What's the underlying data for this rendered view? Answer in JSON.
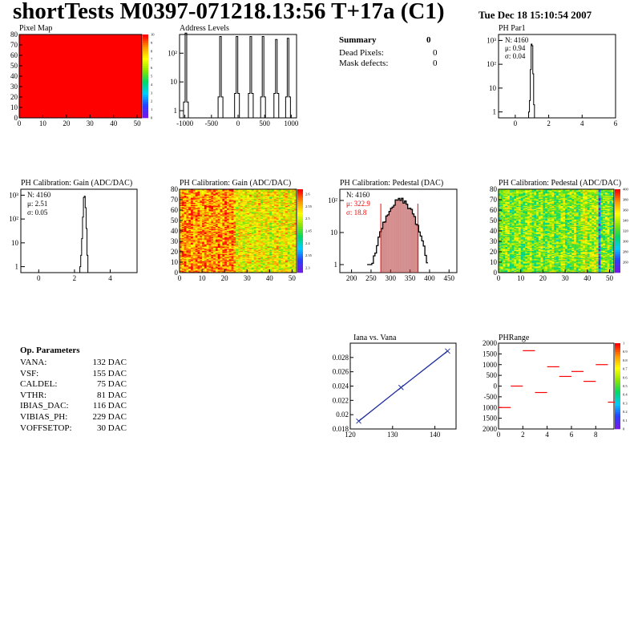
{
  "header": {
    "title": "shortTests M0397-071218.13:56 T+17a (C1)",
    "date": "Tue Dec 18 15:10:54 2007"
  },
  "summary": {
    "title": "Summary",
    "total": "0",
    "rows": [
      {
        "label": "Dead Pixels:",
        "value": "0"
      },
      {
        "label": "Mask defects:",
        "value": "0"
      }
    ]
  },
  "op_params": {
    "title": "Op. Parameters",
    "rows": [
      {
        "label": "VANA:",
        "value": "132 DAC"
      },
      {
        "label": "VSF:",
        "value": "155 DAC"
      },
      {
        "label": "CALDEL:",
        "value": "75 DAC"
      },
      {
        "label": "VTHR:",
        "value": "81 DAC"
      },
      {
        "label": "IBIAS_DAC:",
        "value": "116 DAC"
      },
      {
        "label": "VIBIAS_PH:",
        "value": "229 DAC"
      },
      {
        "label": "VOFFSETOP:",
        "value": "30 DAC"
      }
    ]
  },
  "colors": {
    "red": "#ff0000",
    "blue": "#1f2ea0",
    "hist_fill": "#b03030"
  },
  "chart_data": [
    {
      "id": "pixel_map",
      "type": "heatmap",
      "title": "Pixel Map",
      "xlim": [
        0,
        52
      ],
      "ylim": [
        0,
        80
      ],
      "xticks": [
        "0",
        "10",
        "20",
        "30",
        "40",
        "50"
      ],
      "yticks": [
        "0",
        "10",
        "20",
        "30",
        "40",
        "50",
        "60",
        "70",
        "80"
      ],
      "zlim": [
        0,
        10
      ],
      "zticks": [
        "0",
        "1",
        "2",
        "3",
        "4",
        "5",
        "6",
        "7",
        "8",
        "9",
        "10"
      ],
      "uniform_value": 10
    },
    {
      "id": "address_levels",
      "type": "bar",
      "title": "Address Levels",
      "xlim": [
        -1100,
        1100
      ],
      "ylog": true,
      "xticks": [
        "-1000",
        "-500",
        "0",
        "500",
        "1000"
      ],
      "yticks": [
        "1",
        "10",
        "10²"
      ],
      "peaks": [
        {
          "x": -980,
          "value": 500,
          "side": 2
        },
        {
          "x": -330,
          "value": 380,
          "side": 3
        },
        {
          "x": -20,
          "value": 380,
          "side": 4
        },
        {
          "x": 240,
          "value": 380,
          "side": 4
        },
        {
          "x": 470,
          "value": 380,
          "side": 3
        },
        {
          "x": 720,
          "value": 300,
          "side": 4
        },
        {
          "x": 940,
          "value": 330,
          "side": 3
        }
      ]
    },
    {
      "id": "ph_par1",
      "type": "bar",
      "title": "PH Par1",
      "xlim": [
        -1,
        6
      ],
      "ylog": true,
      "xticks": [
        "0",
        "2",
        "4",
        "6"
      ],
      "yticks": [
        "1",
        "10",
        "10²",
        "10³"
      ],
      "stats": {
        "n": "N: 4160",
        "mu": "μ: 0.94",
        "sigma": "σ: 0.04"
      },
      "x": [
        0.8,
        0.85,
        0.9,
        0.95,
        1.0,
        1.05,
        1.1
      ],
      "values": [
        1,
        3,
        60,
        700,
        600,
        40,
        2
      ]
    },
    {
      "id": "gain_hist",
      "type": "bar",
      "title": "PH Calibration: Gain (ADC/DAC)",
      "xlim": [
        -1,
        5.5
      ],
      "ylog": true,
      "xticks": [
        "0",
        "2",
        "4"
      ],
      "yticks": [
        "1",
        "10",
        "10²",
        "10³"
      ],
      "stats": {
        "n": "N: 4160",
        "mu": "μ: 2.51",
        "sigma": "σ: 0.05"
      },
      "x": [
        2.3,
        2.35,
        2.4,
        2.45,
        2.5,
        2.55,
        2.6,
        2.65,
        2.7
      ],
      "values": [
        1,
        3,
        15,
        120,
        800,
        900,
        300,
        40,
        3
      ]
    },
    {
      "id": "gain_map",
      "type": "heatmap",
      "title": "PH Calibration: Gain (ADC/DAC)",
      "xlim": [
        0,
        52
      ],
      "ylim": [
        0,
        80
      ],
      "xticks": [
        "0",
        "10",
        "20",
        "30",
        "40",
        "50"
      ],
      "yticks": [
        "0",
        "10",
        "20",
        "30",
        "40",
        "50",
        "60",
        "70",
        "80"
      ],
      "zlim": [
        2.28,
        2.62
      ],
      "zticks": [
        "2.3",
        "2.35",
        "2.4",
        "2.45",
        "2.5",
        "2.55",
        "2.6"
      ]
    },
    {
      "id": "pedestal_hist",
      "type": "bar",
      "title": "PH Calibration: Pedestal (DAC)",
      "xlim": [
        170,
        470
      ],
      "ylog": true,
      "xticks": [
        "200",
        "250",
        "300",
        "350",
        "400",
        "450"
      ],
      "yticks": [
        "1",
        "10",
        "10²"
      ],
      "stats": {
        "n": "N: 4160",
        "mu": "μ: 322.9",
        "sigma": "σ: 18.8"
      },
      "cut_lines": [
        275,
        370
      ],
      "mean": 322.9,
      "sigma": 18.8,
      "peak": 100,
      "hist_range": [
        240,
        395
      ]
    },
    {
      "id": "pedestal_map",
      "type": "heatmap",
      "title": "PH Calibration: Pedestal (ADC/DAC)",
      "xlim": [
        0,
        52
      ],
      "ylim": [
        0,
        80
      ],
      "xticks": [
        "0",
        "10",
        "20",
        "30",
        "40",
        "50"
      ],
      "yticks": [
        "0",
        "10",
        "20",
        "30",
        "40",
        "50",
        "60",
        "70",
        "80"
      ],
      "zlim": [
        240,
        400
      ],
      "zticks": [
        "260",
        "280",
        "300",
        "320",
        "340",
        "360",
        "380",
        "400"
      ]
    },
    {
      "id": "iana_vana",
      "type": "line",
      "title": "Iana vs. Vana",
      "xlim": [
        120,
        145
      ],
      "ylim": [
        0.018,
        0.03
      ],
      "xticks": [
        "120",
        "130",
        "140"
      ],
      "yticks": [
        "0.018",
        "0.02",
        "0.022",
        "0.024",
        "0.026",
        "0.028"
      ],
      "x": [
        122,
        132,
        143
      ],
      "y": [
        0.0191,
        0.0238,
        0.0289
      ]
    },
    {
      "id": "phrange",
      "type": "bar",
      "title": "PHRange",
      "xlim": [
        0,
        9.5
      ],
      "ylim": [
        -2000,
        2000
      ],
      "xticks": [
        "0",
        "2",
        "4",
        "6",
        "8"
      ],
      "yticks": [
        "2000",
        "1500",
        "1000",
        "500",
        "0",
        "-500",
        "1000",
        "1500",
        "2000"
      ],
      "zlim": [
        0,
        1
      ],
      "zticks": [
        "0",
        "0.1",
        "0.2",
        "0.3",
        "0.4",
        "0.5",
        "0.6",
        "0.7",
        "0.8",
        "0.9",
        "1"
      ],
      "segments": [
        {
          "x": 0,
          "value": -1000
        },
        {
          "x": 1,
          "value": 0
        },
        {
          "x": 2,
          "value": 1650
        },
        {
          "x": 3,
          "value": -300
        },
        {
          "x": 4,
          "value": 900
        },
        {
          "x": 5,
          "value": 450
        },
        {
          "x": 6,
          "value": 680
        },
        {
          "x": 7,
          "value": 220
        },
        {
          "x": 8,
          "value": 1000
        },
        {
          "x": 9,
          "value": -750
        }
      ]
    }
  ]
}
